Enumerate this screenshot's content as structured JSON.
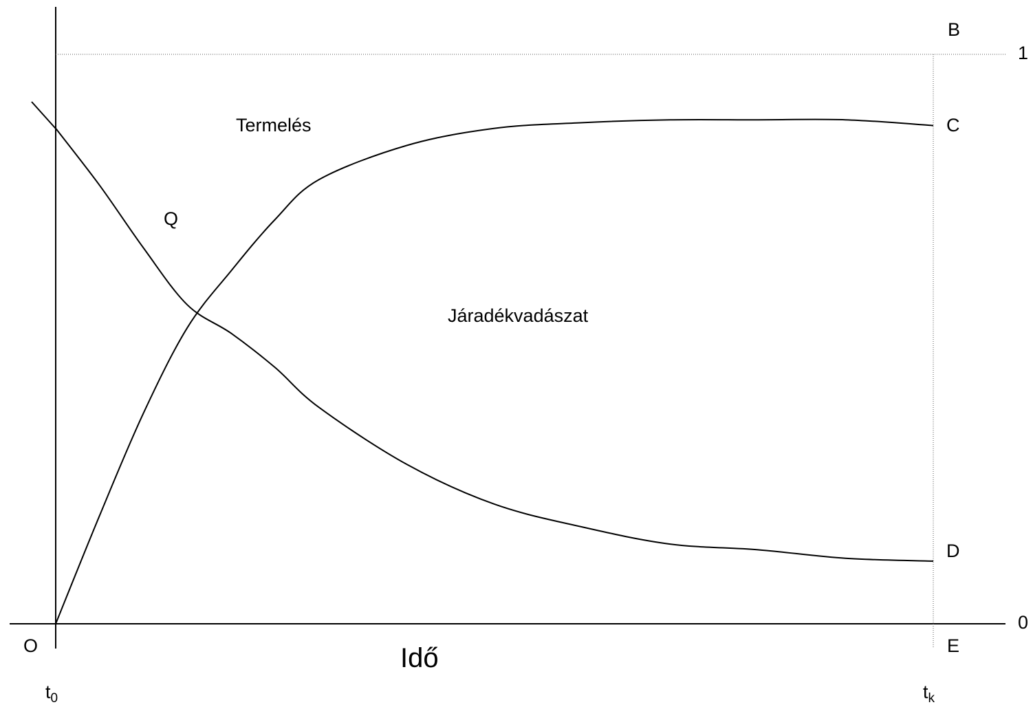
{
  "chart_data": {
    "type": "line",
    "title": "",
    "xlabel": "Idő",
    "ylabel": "",
    "ylim": [
      0,
      1
    ],
    "xlim": [
      0,
      1
    ],
    "y_tick_labels": [
      "0",
      "1"
    ],
    "x_tick_labels": [
      "t",
      "t"
    ],
    "x_tick_subscripts": [
      "0",
      "k"
    ],
    "point_labels": {
      "O": "O",
      "B": "B",
      "C": "C",
      "D": "D",
      "E": "E",
      "Q": "Q"
    },
    "region_labels": {
      "upper": "Termelés",
      "lower": "Járadékvadászat"
    },
    "series": [
      {
        "name": "",
        "x": [
          0,
          0.05,
          0.1,
          0.15,
          0.2,
          0.25,
          0.3,
          0.4,
          0.5,
          0.6,
          0.7,
          0.8,
          0.9,
          1.0
        ],
        "y": [
          0.0,
          0.19,
          0.37,
          0.52,
          0.62,
          0.71,
          0.78,
          0.84,
          0.87,
          0.88,
          0.885,
          0.885,
          0.885,
          0.875
        ]
      },
      {
        "name": "",
        "x": [
          0,
          0.05,
          0.1,
          0.15,
          0.2,
          0.25,
          0.3,
          0.4,
          0.5,
          0.6,
          0.7,
          0.8,
          0.9,
          1.0
        ],
        "y": [
          0.87,
          0.77,
          0.66,
          0.56,
          0.51,
          0.45,
          0.38,
          0.28,
          0.21,
          0.17,
          0.14,
          0.13,
          0.115,
          0.11
        ]
      }
    ],
    "grid": false,
    "legend": "none"
  }
}
